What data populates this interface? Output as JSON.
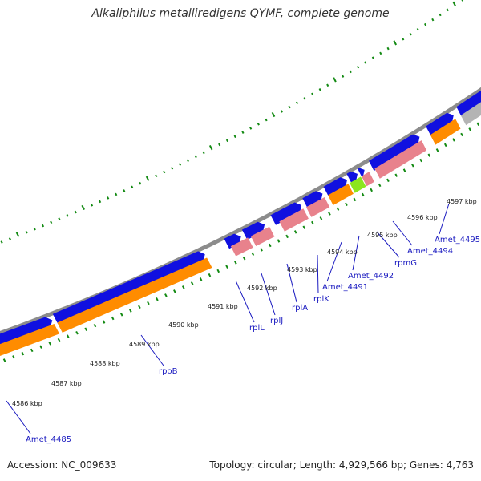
{
  "title": "Alkaliphilus metalliredigens QYMF, complete genome",
  "footer": {
    "accession": "Accession: NC_009633",
    "info": "Topology: circular; Length: 4,929,566 bp; Genes: 4,763"
  },
  "colors": {
    "backbone": "#8c8c8c",
    "cds_forward": "#1010e0",
    "gene_orange": "#ff8c00",
    "rrna_pink": "#e8828c",
    "misc_green": "#8ce61e",
    "misc_grey": "#b4b4b4",
    "tick_green": "#138a13",
    "label_blue": "#1a1ac0"
  },
  "kbp_labels": [
    "4586 kbp",
    "4587 kbp",
    "4588 kbp",
    "4589 kbp",
    "4590 kbp",
    "4591 kbp",
    "4592 kbp",
    "4593 kbp",
    "4594 kbp",
    "4595 kbp",
    "4596 kbp",
    "4597 kbp"
  ],
  "gene_labels": [
    "Amet_4485",
    "rpoB",
    "rplL",
    "rplJ",
    "rplA",
    "rplK",
    "Amet_4491",
    "Amet_4492",
    "rpmG",
    "Amet_4494",
    "Amet_4495"
  ]
}
